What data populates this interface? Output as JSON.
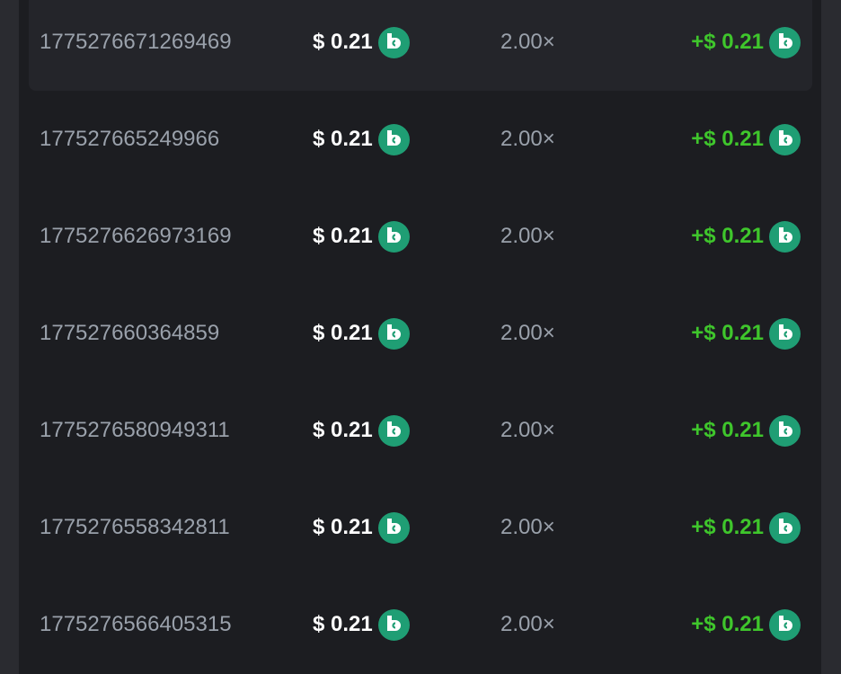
{
  "colors": {
    "background": "#1c1d21",
    "id_text": "#9aa1ab",
    "payout": "#3fc62c",
    "coin": "#1f9e74"
  },
  "coin_icon": "bc-coin-icon",
  "rows": [
    {
      "id": "1775276671269469",
      "bet": "$ 0.21",
      "multiplier": "2.00×",
      "payout": "+$ 0.21"
    },
    {
      "id": "177527665249966",
      "bet": "$ 0.21",
      "multiplier": "2.00×",
      "payout": "+$ 0.21"
    },
    {
      "id": "1775276626973169",
      "bet": "$ 0.21",
      "multiplier": "2.00×",
      "payout": "+$ 0.21"
    },
    {
      "id": "177527660364859",
      "bet": "$ 0.21",
      "multiplier": "2.00×",
      "payout": "+$ 0.21"
    },
    {
      "id": "1775276580949311",
      "bet": "$ 0.21",
      "multiplier": "2.00×",
      "payout": "+$ 0.21"
    },
    {
      "id": "1775276558342811",
      "bet": "$ 0.21",
      "multiplier": "2.00×",
      "payout": "+$ 0.21"
    },
    {
      "id": "1775276566405315",
      "bet": "$ 0.21",
      "multiplier": "2.00×",
      "payout": "+$ 0.21"
    }
  ]
}
